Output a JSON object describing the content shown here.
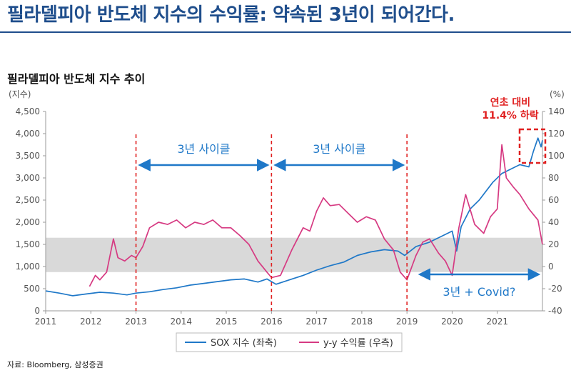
{
  "headline": "필라델피아 반도체 지수의 수익률: 약속된 3년이 되어간다.",
  "subtitle": "필라델피아 반도체 지수 추이",
  "source": "자료: Bloomberg, 삼성증권",
  "colors": {
    "sox": "#1f78c8",
    "yoy": "#d63a82",
    "cycle_line": "#e02020",
    "arrow": "#1f78c8",
    "band": "#d9d9d9",
    "highlight": "#e02020",
    "headline": "#1f4e8c"
  },
  "chart_data": {
    "type": "line",
    "title": "필라델피아 반도체 지수 추이",
    "left_axis": {
      "unit_label": "(지수)",
      "range": [
        0,
        4500
      ],
      "ticks": [
        "0",
        "500",
        "1,000",
        "1,500",
        "2,000",
        "2,500",
        "3,000",
        "3,500",
        "4,000",
        "4,500"
      ]
    },
    "right_axis": {
      "unit_label": "(%)",
      "range": [
        -40,
        140
      ],
      "ticks": [
        "-40",
        "-20",
        "0",
        "20",
        "40",
        "60",
        "80",
        "100",
        "120",
        "140"
      ]
    },
    "x_axis": {
      "range": [
        2011.0,
        2022.0
      ],
      "ticks": [
        "2011",
        "2012",
        "2013",
        "2014",
        "2015",
        "2016",
        "2017",
        "2018",
        "2019",
        "2020",
        "2021"
      ]
    },
    "shaded_band": {
      "axis": "right",
      "from": -5,
      "to": 26
    },
    "legend_placement": "bottom-center",
    "series": [
      {
        "name": "SOX 지수 (좌축)",
        "axis": "left",
        "x": [
          2011.0,
          2011.3,
          2011.6,
          2011.9,
          2012.2,
          2012.5,
          2012.8,
          2013.0,
          2013.3,
          2013.6,
          2013.9,
          2014.2,
          2014.5,
          2014.8,
          2015.1,
          2015.4,
          2015.7,
          2015.9,
          2016.1,
          2016.4,
          2016.7,
          2017.0,
          2017.3,
          2017.6,
          2017.9,
          2018.2,
          2018.5,
          2018.8,
          2018.95,
          2019.2,
          2019.5,
          2019.8,
          2020.0,
          2020.1,
          2020.2,
          2020.4,
          2020.6,
          2020.9,
          2021.1,
          2021.3,
          2021.5,
          2021.7,
          2021.8,
          2021.9,
          2021.97,
          2022.0
        ],
        "values": [
          450,
          400,
          340,
          380,
          420,
          400,
          360,
          400,
          430,
          480,
          520,
          580,
          620,
          660,
          700,
          720,
          650,
          720,
          600,
          700,
          800,
          920,
          1020,
          1100,
          1250,
          1330,
          1380,
          1350,
          1250,
          1450,
          1550,
          1700,
          1800,
          1350,
          1900,
          2300,
          2500,
          2900,
          3100,
          3200,
          3300,
          3250,
          3600,
          3900,
          3700,
          3850
        ]
      },
      {
        "name": "y-y 수익률 (우측)",
        "axis": "right",
        "x": [
          2011.97,
          2012.1,
          2012.2,
          2012.35,
          2012.5,
          2012.6,
          2012.75,
          2012.9,
          2013.0,
          2013.15,
          2013.3,
          2013.5,
          2013.7,
          2013.9,
          2014.1,
          2014.3,
          2014.5,
          2014.7,
          2014.9,
          2015.1,
          2015.3,
          2015.5,
          2015.7,
          2015.9,
          2016.0,
          2016.2,
          2016.45,
          2016.7,
          2016.85,
          2017.0,
          2017.15,
          2017.3,
          2017.5,
          2017.7,
          2017.9,
          2018.1,
          2018.3,
          2018.5,
          2018.7,
          2018.85,
          2019.0,
          2019.2,
          2019.35,
          2019.5,
          2019.7,
          2019.85,
          2020.0,
          2020.15,
          2020.3,
          2020.5,
          2020.7,
          2020.85,
          2021.0,
          2021.1,
          2021.2,
          2021.35,
          2021.5,
          2021.7,
          2021.9,
          2022.0
        ],
        "values": [
          -18,
          -8,
          -12,
          -5,
          25,
          8,
          5,
          10,
          8,
          18,
          35,
          40,
          38,
          42,
          35,
          40,
          38,
          42,
          35,
          35,
          28,
          20,
          5,
          -5,
          -10,
          -8,
          15,
          35,
          32,
          50,
          62,
          55,
          56,
          48,
          40,
          45,
          42,
          25,
          15,
          -5,
          -12,
          10,
          22,
          25,
          12,
          5,
          -8,
          35,
          65,
          38,
          30,
          45,
          52,
          110,
          80,
          72,
          65,
          52,
          42,
          20
        ]
      }
    ],
    "cycle_dividers_x": [
      2013.0,
      2016.0,
      2019.0
    ],
    "annotations": [
      {
        "text": "3년 사이클",
        "x_from": 2013.1,
        "x_to": 2015.9
      },
      {
        "text": "3년 사이클",
        "x_from": 2016.1,
        "x_to": 2018.9
      },
      {
        "text": "3년 + Covid?",
        "x_from": 2019.3,
        "x_to": 2021.9
      }
    ],
    "callout": {
      "line1": "연초 대비",
      "line2": "11.4% 하락"
    }
  }
}
